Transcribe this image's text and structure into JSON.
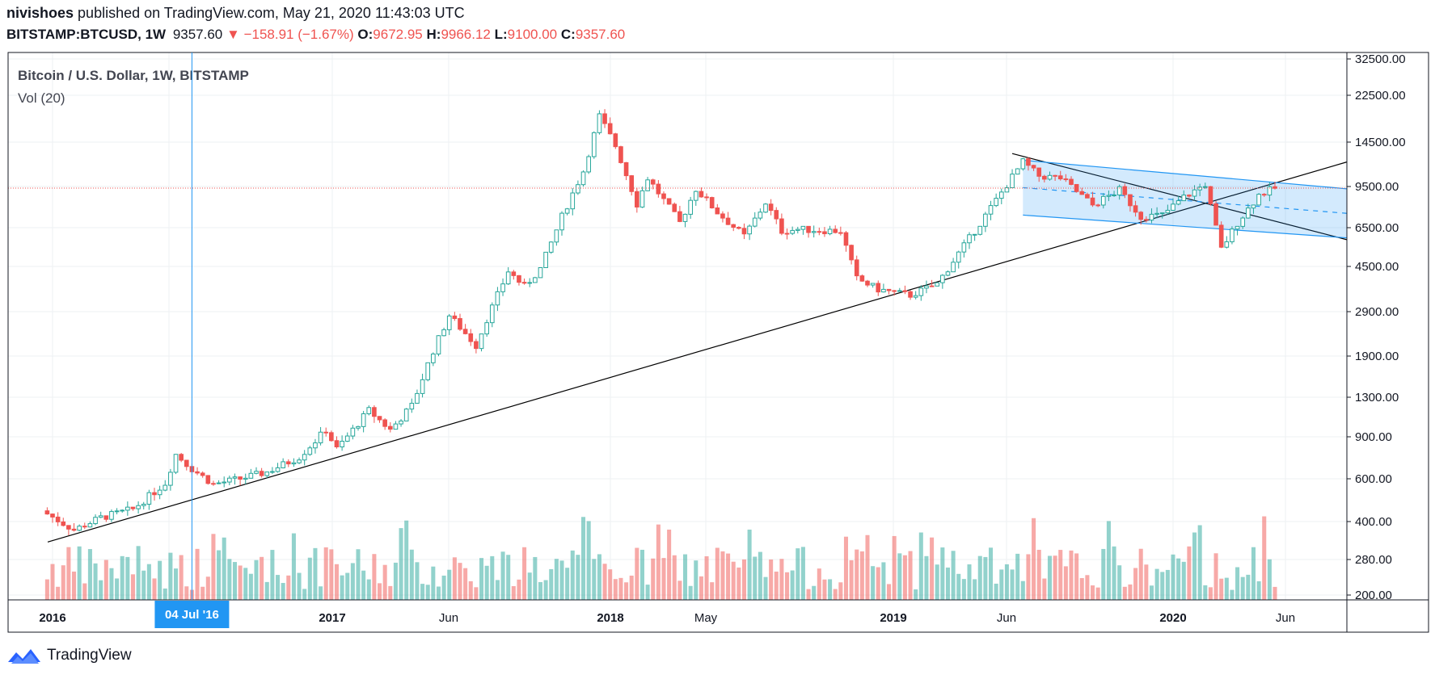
{
  "header": {
    "user": "nivishoes",
    "published_text": "published on TradingView.com, May 21, 2020 11:43:03 UTC",
    "symbol": "BITSTAMP:BTCUSD",
    "interval": "1W",
    "last": "9357.60",
    "change": "−158.91 (−1.67%)",
    "o_label": "O:",
    "o": "9672.95",
    "h_label": "H:",
    "h": "9966.12",
    "l_label": "L:",
    "l": "9100.00",
    "c_label": "C:",
    "c": "9357.60"
  },
  "legend": {
    "title": "Bitcoin / U.S. Dollar, 1W, BITSTAMP",
    "volume": "Vol (20)"
  },
  "crosshair_label": "04 Jul '16",
  "footer": {
    "brand": "TradingView",
    "icon": "tradingview-logo-icon"
  },
  "colors": {
    "up": "#26a69a",
    "down": "#ef5350",
    "line": "#000000",
    "channel": "#2196f3",
    "crosshair": "#2196f3",
    "last_price_line": "#ef5350"
  },
  "chart_data": {
    "type": "candlestick",
    "title": "Bitcoin / U.S. Dollar, 1W, BITSTAMP",
    "x_ticks": [
      "2016",
      "Jun",
      "2017",
      "Jun",
      "2018",
      "May",
      "2019",
      "Jun",
      "2020",
      "Jun"
    ],
    "y_ticks": [
      "32500.00",
      "22500.00",
      "14500.00",
      "9500.00",
      "6500.00",
      "4500.00",
      "2900.00",
      "1900.00",
      "1300.00",
      "900.00",
      "600.00",
      "400.00",
      "280.00",
      "200.00"
    ],
    "y_scale": "log",
    "ylim": [
      200,
      32500
    ],
    "last_price": 9357.6,
    "series": [
      {
        "name": "BTCUSD weekly close",
        "points": [
          [
            "2015-12-28",
            430
          ],
          [
            "2016-02-01",
            370
          ],
          [
            "2016-03-07",
            415
          ],
          [
            "2016-04-18",
            450
          ],
          [
            "2016-05-30",
            575
          ],
          [
            "2016-06-13",
            760
          ],
          [
            "2016-07-04",
            660
          ],
          [
            "2016-08-01",
            570
          ],
          [
            "2016-09-05",
            600
          ],
          [
            "2016-10-10",
            640
          ],
          [
            "2016-11-21",
            740
          ],
          [
            "2016-12-26",
            960
          ],
          [
            "2017-01-09",
            800
          ],
          [
            "2017-02-20",
            1150
          ],
          [
            "2017-03-20",
            960
          ],
          [
            "2017-04-17",
            1200
          ],
          [
            "2017-05-15",
            2000
          ],
          [
            "2017-06-05",
            2800
          ],
          [
            "2017-07-10",
            2100
          ],
          [
            "2017-07-24",
            2700
          ],
          [
            "2017-08-21",
            4300
          ],
          [
            "2017-09-11",
            3700
          ],
          [
            "2017-10-02",
            4400
          ],
          [
            "2017-10-30",
            7200
          ],
          [
            "2017-11-27",
            11000
          ],
          [
            "2017-12-18",
            18500
          ],
          [
            "2018-01-08",
            14000
          ],
          [
            "2018-02-05",
            8100
          ],
          [
            "2018-02-19",
            10300
          ],
          [
            "2018-04-02",
            6800
          ],
          [
            "2018-04-23",
            9300
          ],
          [
            "2018-05-21",
            7500
          ],
          [
            "2018-06-25",
            6000
          ],
          [
            "2018-07-23",
            8200
          ],
          [
            "2018-08-13",
            6300
          ],
          [
            "2018-09-03",
            6400
          ],
          [
            "2018-10-29",
            6300
          ],
          [
            "2018-11-19",
            4000
          ],
          [
            "2018-12-17",
            3600
          ],
          [
            "2019-01-28",
            3400
          ],
          [
            "2019-03-04",
            3800
          ],
          [
            "2019-04-01",
            5100
          ],
          [
            "2019-05-13",
            7800
          ],
          [
            "2019-06-24",
            12000
          ],
          [
            "2019-07-15",
            10500
          ],
          [
            "2019-08-12",
            10300
          ],
          [
            "2019-09-23",
            8000
          ],
          [
            "2019-10-28",
            9200
          ],
          [
            "2019-11-25",
            7200
          ],
          [
            "2019-12-23",
            7300
          ],
          [
            "2020-01-20",
            8600
          ],
          [
            "2020-02-17",
            9700
          ],
          [
            "2020-03-09",
            5300
          ],
          [
            "2020-03-30",
            6800
          ],
          [
            "2020-04-27",
            8800
          ],
          [
            "2020-05-18",
            9357.6
          ]
        ]
      }
    ],
    "annotations": [
      "long-term support trendline",
      "descending channel 2019-2020",
      "crosshair at 04 Jul '16",
      "last price line 9357.60"
    ]
  }
}
